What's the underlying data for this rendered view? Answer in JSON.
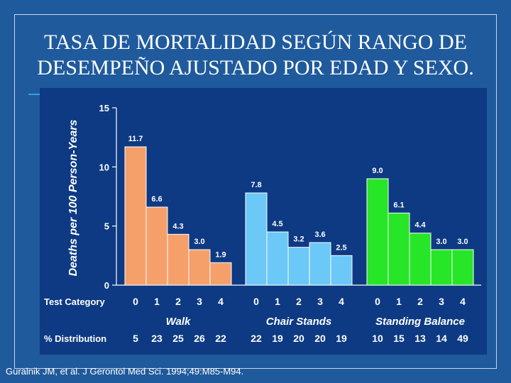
{
  "slide": {
    "title_line1": "TASA DE MORTALIDAD SEGÚN RANGO DE",
    "title_line2": "DESEMPEÑO AJUSTADO POR EDAD Y SEXO.",
    "citation": "Guralnik JM, et al. J Gerontol Med Sci. 1994;49:M85-M94."
  },
  "colors": {
    "background": "#1f5a9c",
    "panel": "#0d3a83",
    "walk": "#f5a06b",
    "chair": "#6cc8f7",
    "balance": "#27e627"
  },
  "chart_data": {
    "type": "bar",
    "title": "",
    "xlabel": "Test Category",
    "ylabel": "Deaths per 100 Person-Years",
    "ylim": [
      0,
      15
    ],
    "yticks": [
      "0",
      "5",
      "10",
      "15"
    ],
    "row_label_category": "Test Category",
    "row_label_distribution": "% Distribution",
    "groups": [
      {
        "name": "Walk",
        "color": "#f5a06b",
        "categories": [
          "0",
          "1",
          "2",
          "3",
          "4"
        ],
        "values": [
          11.7,
          6.6,
          4.3,
          3.0,
          1.9
        ],
        "value_labels": [
          "11.7",
          "6.6",
          "4.3",
          "3.0",
          "1.9"
        ],
        "distribution": [
          "5",
          "23",
          "25",
          "26",
          "22"
        ]
      },
      {
        "name": "Chair Stands",
        "color": "#6cc8f7",
        "categories": [
          "0",
          "1",
          "2",
          "3",
          "4"
        ],
        "values": [
          7.8,
          4.5,
          3.2,
          3.6,
          2.5
        ],
        "value_labels": [
          "7.8",
          "4.5",
          "3.2",
          "3.6",
          "2.5"
        ],
        "distribution": [
          "22",
          "19",
          "20",
          "20",
          "19"
        ]
      },
      {
        "name": "Standing Balance",
        "color": "#27e627",
        "categories": [
          "0",
          "1",
          "2",
          "3",
          "4"
        ],
        "values": [
          9.0,
          6.1,
          4.4,
          3.0,
          3.0
        ],
        "value_labels": [
          "9.0",
          "6.1",
          "4.4",
          "3.0",
          "3.0"
        ],
        "distribution": [
          "10",
          "15",
          "13",
          "14",
          "49"
        ]
      }
    ]
  }
}
